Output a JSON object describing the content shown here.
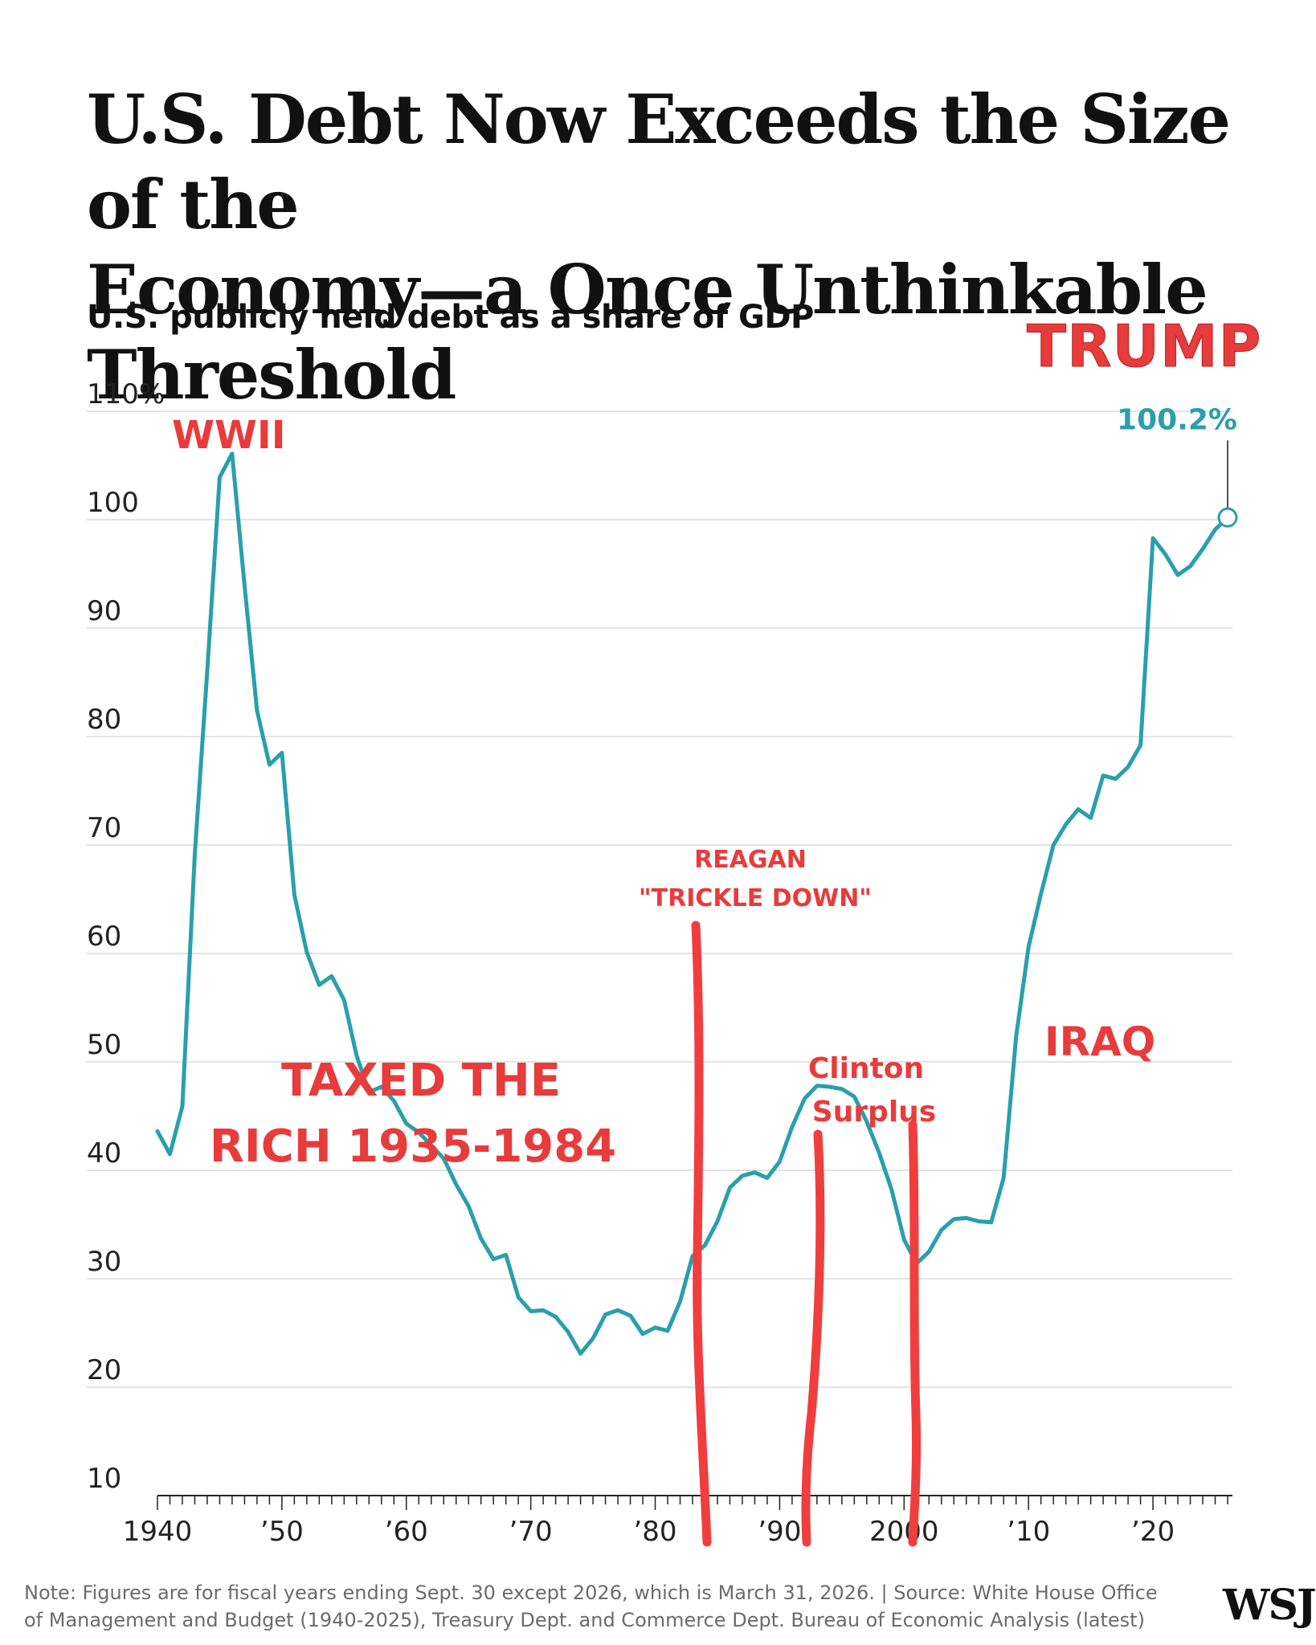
{
  "title_line1": "U.S. Debt Now Exceeds the Size of the",
  "title_line2": "Economy—a Once Unthinkable Threshold",
  "subtitle": "U.S. publicly held debt as a share of GDP",
  "note_line1": "Note: Figures are for fiscal years ending Sept. 30 except 2026, which is March 31, 2026. | Source: White House Office",
  "note_line2": "of Management and Budget (1940-2025), Treasury Dept. and Commerce Dept. Bureau of Economic Analysis (latest)",
  "logo": "WSJ",
  "colors": {
    "line": "#2a9fac",
    "annotation": "#e83b3b",
    "grid": "#d9d9d9"
  },
  "chart_data": {
    "type": "line",
    "title": "U.S. publicly held debt as a share of GDP",
    "ylim": [
      10,
      110
    ],
    "xlim": [
      1940,
      2026
    ],
    "grid": true,
    "y_ticks": [
      {
        "value": 110,
        "label": "110%"
      },
      {
        "value": 100,
        "label": "100"
      },
      {
        "value": 90,
        "label": "90"
      },
      {
        "value": 80,
        "label": "80"
      },
      {
        "value": 70,
        "label": "70"
      },
      {
        "value": 60,
        "label": "60"
      },
      {
        "value": 50,
        "label": "50"
      },
      {
        "value": 40,
        "label": "40"
      },
      {
        "value": 30,
        "label": "30"
      },
      {
        "value": 20,
        "label": "20"
      },
      {
        "value": 10,
        "label": "10"
      }
    ],
    "x_ticks": [
      {
        "value": 1940,
        "label": "1940"
      },
      {
        "value": 1950,
        "label": "’50"
      },
      {
        "value": 1960,
        "label": "’60"
      },
      {
        "value": 1970,
        "label": "’70"
      },
      {
        "value": 1980,
        "label": "’80"
      },
      {
        "value": 1990,
        "label": "’90"
      },
      {
        "value": 2000,
        "label": "2000"
      },
      {
        "value": 2010,
        "label": "’10"
      },
      {
        "value": 2020,
        "label": "’20"
      }
    ],
    "series": [
      {
        "x": [
          1940,
          1941,
          1942,
          1943,
          1944,
          1945,
          1946,
          1947,
          1948,
          1949,
          1950,
          1951,
          1952,
          1953,
          1954,
          1955,
          1956,
          1957,
          1958,
          1959,
          1960,
          1961,
          1962,
          1963,
          1964,
          1965,
          1966,
          1967,
          1968,
          1969,
          1970,
          1971,
          1972,
          1973,
          1974,
          1975,
          1976,
          1977,
          1978,
          1979,
          1980,
          1981,
          1982,
          1983,
          1984,
          1985,
          1986,
          1987,
          1988,
          1989,
          1990,
          1991,
          1992,
          1993,
          1994,
          1995,
          1996,
          1997,
          1998,
          1999,
          2000,
          2001,
          2002,
          2003,
          2004,
          2005,
          2006,
          2007,
          2008,
          2009,
          2010,
          2011,
          2012,
          2013,
          2014,
          2015,
          2016,
          2017,
          2018,
          2019,
          2020,
          2021,
          2022,
          2023,
          2024,
          2025,
          2026
        ],
        "y": [
          43.6,
          41.5,
          45.9,
          69.2,
          86.1,
          103.9,
          106.1,
          93.9,
          82.4,
          77.4,
          78.5,
          65.4,
          60.1,
          57.1,
          57.9,
          55.7,
          50.6,
          47.2,
          47.7,
          46.4,
          44.3,
          43.5,
          42.3,
          41.1,
          38.7,
          36.7,
          33.7,
          31.8,
          32.2,
          28.3,
          27.0,
          27.1,
          26.5,
          25.1,
          23.1,
          24.5,
          26.7,
          27.1,
          26.6,
          24.9,
          25.5,
          25.2,
          27.9,
          32.1,
          33.1,
          35.3,
          38.4,
          39.5,
          39.8,
          39.3,
          40.8,
          44.0,
          46.6,
          47.8,
          47.7,
          47.5,
          46.8,
          44.5,
          41.6,
          38.2,
          33.6,
          31.4,
          32.5,
          34.5,
          35.5,
          35.6,
          35.3,
          35.2,
          39.3,
          52.3,
          60.6,
          65.5,
          70.0,
          71.9,
          73.3,
          72.5,
          76.4,
          76.1,
          77.2,
          79.2,
          98.3,
          96.8,
          94.9,
          95.7,
          97.3,
          99.1,
          100.2
        ]
      }
    ],
    "end_label": "100.2%",
    "annotations": [
      {
        "text": "TRUMP"
      },
      {
        "text": "WWII"
      },
      {
        "text": "REAGAN"
      },
      {
        "text": "\"TRICKLE DOWN\""
      },
      {
        "text": "Clinton"
      },
      {
        "text": "Surplus"
      },
      {
        "text": "IRAQ"
      },
      {
        "text": "TAXED THE"
      },
      {
        "text": "RICH 1935-1984"
      }
    ]
  }
}
